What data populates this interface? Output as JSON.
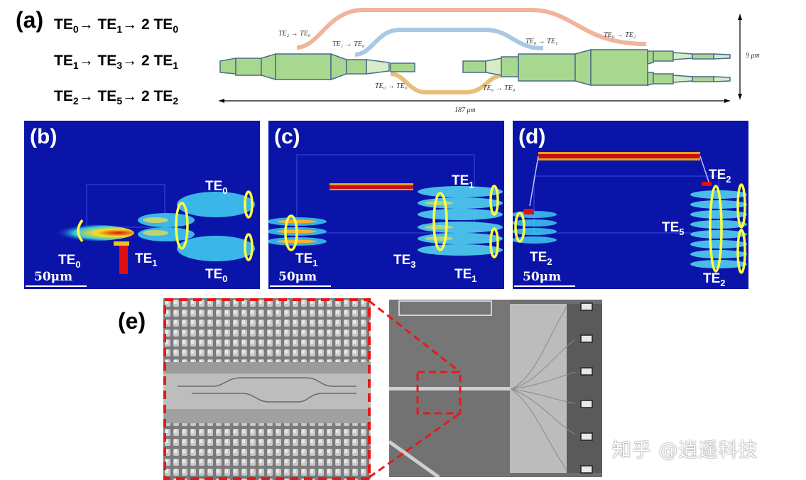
{
  "panel_a": {
    "letter": "(a)",
    "modes": [
      {
        "a": "TE",
        "a_sub": "0",
        "b": "TE",
        "b_sub": "1",
        "c": "2 TE",
        "c_sub": "0"
      },
      {
        "a": "TE",
        "a_sub": "1",
        "b": "TE",
        "b_sub": "3",
        "c": "2 TE",
        "c_sub": "1"
      },
      {
        "a": "TE",
        "a_sub": "2",
        "b": "TE",
        "b_sub": "5",
        "c": "2 TE",
        "c_sub": "2"
      }
    ],
    "arrow": "→",
    "annotations": {
      "te2_te0": "TE₂ → TE₀",
      "te1_te0": "TE₁ → TE₀",
      "te0_te1": "TE₀ → TE₁",
      "te0_te2": "TE₀ → TE₂",
      "te0_te0_left": "TE₀ → TE₀",
      "te0_te0_right": "TE₀ → TE₀"
    },
    "height_label": "9 μm",
    "length_label": "187 μm"
  },
  "panel_b": {
    "letter": "(b)",
    "labels": {
      "top_right": "TE",
      "top_right_sub": "0",
      "left": "TE",
      "left_sub": "0",
      "mid": "TE",
      "mid_sub": "1",
      "bottom_right": "TE",
      "bottom_right_sub": "0"
    },
    "scale": "50μm"
  },
  "panel_c": {
    "letter": "(c)",
    "labels": {
      "top_right": "TE",
      "top_right_sub": "1",
      "left": "TE",
      "left_sub": "1",
      "mid": "TE",
      "mid_sub": "3",
      "bottom_right": "TE",
      "bottom_right_sub": "1"
    },
    "scale": "50μm"
  },
  "panel_d": {
    "letter": "(d)",
    "labels": {
      "top_right": "TE",
      "top_right_sub": "2",
      "left": "TE",
      "left_sub": "2",
      "mid": "TE",
      "mid_sub": "5",
      "bottom_right": "TE",
      "bottom_right_sub": "2"
    },
    "scale": "50μm"
  },
  "panel_e": {
    "letter": "(e)"
  },
  "watermark": "知乎 @逍遥科技",
  "colors": {
    "sim_bg": "#0a14a8",
    "hot": "#e01010",
    "ring": "#ffff40",
    "waveguide": "#a8d890",
    "bend_orange": "#f2b49a",
    "bend_blue": "#a9c8e4",
    "bend_gold": "#e6c07a",
    "dash_red": "#e41a1a"
  }
}
